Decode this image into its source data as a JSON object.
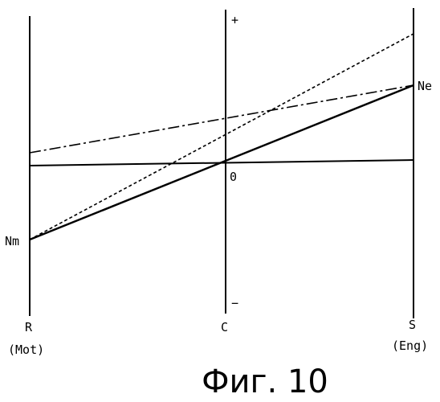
{
  "diagram": {
    "axes": {
      "left": {
        "top_label": "R",
        "bottom_label": "(Mot)"
      },
      "center": {
        "top_sign": "+",
        "bottom_sign": "−",
        "bottom_label": "C"
      },
      "right": {
        "top_label": "S",
        "bottom_label": "(Eng)"
      }
    },
    "point_labels": {
      "ne": "Ne",
      "nm": "Nm",
      "zero": "0"
    },
    "caption": "Фиг. 10"
  }
}
